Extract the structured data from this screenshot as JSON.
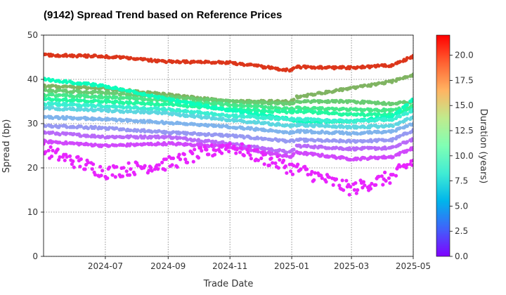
{
  "chart_data": {
    "type": "scatter",
    "title": "(9142)   Spread Trend based on Reference Prices",
    "xlabel": "Trade Date",
    "ylabel": "Spread (bp)",
    "xlim": [
      "2024-05-01",
      "2025-05-01"
    ],
    "ylim": [
      0,
      50
    ],
    "xticks": [
      "2024-07",
      "2024-09",
      "2024-11",
      "2025-01",
      "2025-03",
      "2025-05"
    ],
    "yticks": [
      0,
      10,
      20,
      30,
      40,
      50
    ],
    "grid": true,
    "colormap": "rainbow",
    "colorbar": {
      "label": "Duration (years)",
      "range": [
        0.0,
        22.0
      ],
      "ticks": [
        "0.0",
        "2.5",
        "5.0",
        "7.5",
        "10.0",
        "12.5",
        "15.0",
        "17.5",
        "20.0"
      ]
    },
    "x_breaks": [
      "2024-05-01",
      "2024-07-01",
      "2024-09-01",
      "2024-11-01",
      "2024-12-31",
      "2025-01-06",
      "2025-03-01",
      "2025-04-10",
      "2025-05-01"
    ],
    "series": [
      {
        "duration": 20.5,
        "values": [
          45.5,
          45.2,
          44.0,
          43.8,
          42.0,
          42.8,
          42.6,
          43.2,
          45.2
        ]
      },
      {
        "duration": 16.5,
        "values": [
          38.5,
          38.0,
          36.5,
          35.0,
          35.0,
          36.0,
          38.0,
          39.5,
          41.0
        ]
      },
      {
        "duration": 15.5,
        "values": [
          37.5,
          37.0,
          36.0,
          35.0,
          34.5,
          35.0,
          35.0,
          34.5,
          35.0
        ]
      },
      {
        "duration": 14.0,
        "values": [
          36.5,
          36.0,
          35.2,
          34.3,
          33.3,
          33.5,
          33.2,
          33.0,
          34.0
        ]
      },
      {
        "duration": 12.5,
        "values": [
          35.5,
          35.0,
          34.3,
          33.3,
          32.6,
          32.8,
          32.0,
          32.0,
          33.5
        ]
      },
      {
        "duration": 10.5,
        "values": [
          40.0,
          38.5,
          35.5,
          33.0,
          31.0,
          30.5,
          30.5,
          31.5,
          35.5
        ]
      },
      {
        "duration": 8.5,
        "values": [
          34.5,
          34.0,
          33.2,
          31.8,
          31.0,
          31.0,
          30.5,
          31.0,
          33.0
        ]
      },
      {
        "duration": 7.0,
        "values": [
          33.5,
          33.0,
          32.3,
          30.8,
          29.5,
          29.7,
          29.2,
          29.5,
          31.5
        ]
      },
      {
        "duration": 5.5,
        "values": [
          31.5,
          31.0,
          30.2,
          29.3,
          28.0,
          28.3,
          27.8,
          28.2,
          30.0
        ]
      },
      {
        "duration": 4.5,
        "values": [
          29.5,
          29.0,
          28.0,
          27.3,
          26.0,
          26.3,
          26.0,
          26.3,
          28.5
        ]
      },
      {
        "duration": 3.0,
        "values": [
          28.0,
          27.0,
          27.0,
          25.5,
          23.5,
          25.0,
          24.3,
          24.5,
          26.5
        ]
      },
      {
        "duration": 2.0,
        "values": [
          26.0,
          25.0,
          25.5,
          24.8,
          22.5,
          23.5,
          22.0,
          22.5,
          24.5
        ]
      },
      {
        "duration": 1.0,
        "values": [
          24.0,
          19.0,
          21.0,
          25.0,
          20.0,
          19.8,
          15.2,
          18.0,
          21.5
        ]
      }
    ]
  }
}
